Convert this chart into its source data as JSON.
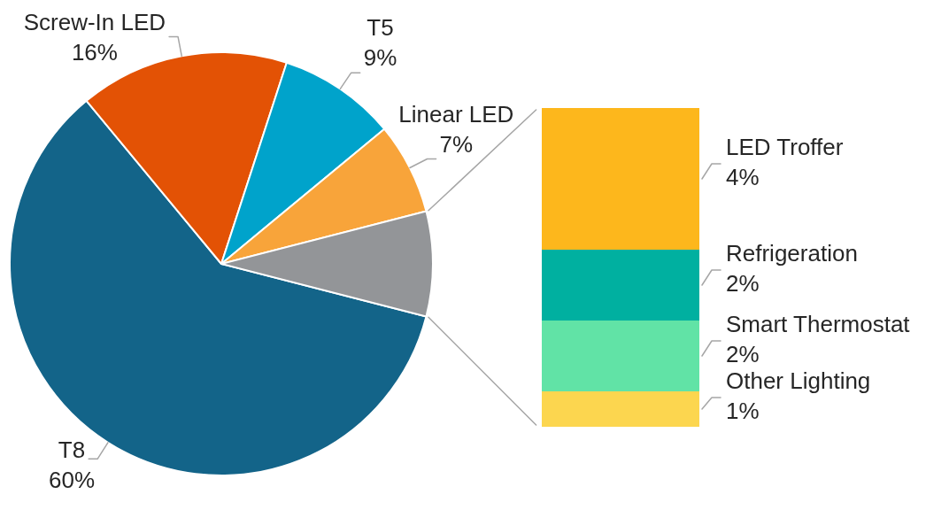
{
  "chart_data": [
    {
      "type": "pie",
      "categories": [
        "T8",
        "Screw-In LED",
        "T5",
        "Linear LED",
        null
      ],
      "values": [
        60,
        16,
        9,
        7,
        8
      ],
      "colors": [
        "#136489",
        "#e35205",
        "#00a3cb",
        "#f8a43a",
        "#939598"
      ],
      "value_labels": [
        "60%",
        "16%",
        "9%",
        "7%",
        null
      ]
    },
    {
      "type": "bar",
      "stacked": true,
      "tick_labels": false,
      "categories": [
        null
      ],
      "series": [
        {
          "name": "Other Lighting",
          "color": "#fcd64f",
          "values": [
            1
          ],
          "value_labels": [
            "1%"
          ]
        },
        {
          "name": "Smart Thermostat",
          "color": "#61e3a6",
          "values": [
            2
          ],
          "value_labels": [
            "2%"
          ]
        },
        {
          "name": "Refrigeration",
          "color": "#00b0a0",
          "values": [
            2
          ],
          "value_labels": [
            "2%"
          ]
        },
        {
          "name": "LED Troffer",
          "color": "#fdb71c",
          "values": [
            4
          ],
          "value_labels": [
            "4%"
          ]
        }
      ]
    }
  ]
}
